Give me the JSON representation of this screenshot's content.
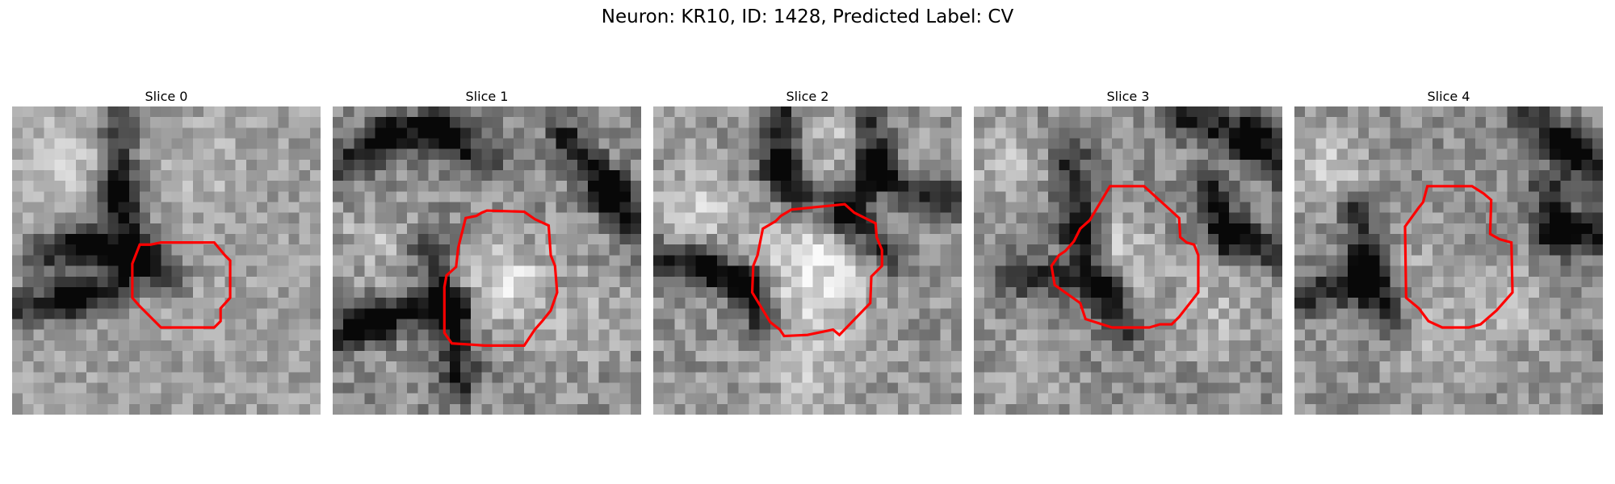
{
  "figure": {
    "title": "Neuron: KR10, ID: 1428, Predicted Label: CV"
  },
  "panels": [
    {
      "title": "Slice 0"
    },
    {
      "title": "Slice 1"
    },
    {
      "title": "Slice 2"
    },
    {
      "title": "Slice 3"
    },
    {
      "title": "Slice 4"
    }
  ],
  "colors": {
    "contour": "#ff0000",
    "background": "#ffffff",
    "text": "#000000"
  },
  "image": {
    "colormap": "grayscale",
    "grid_size": 29
  }
}
